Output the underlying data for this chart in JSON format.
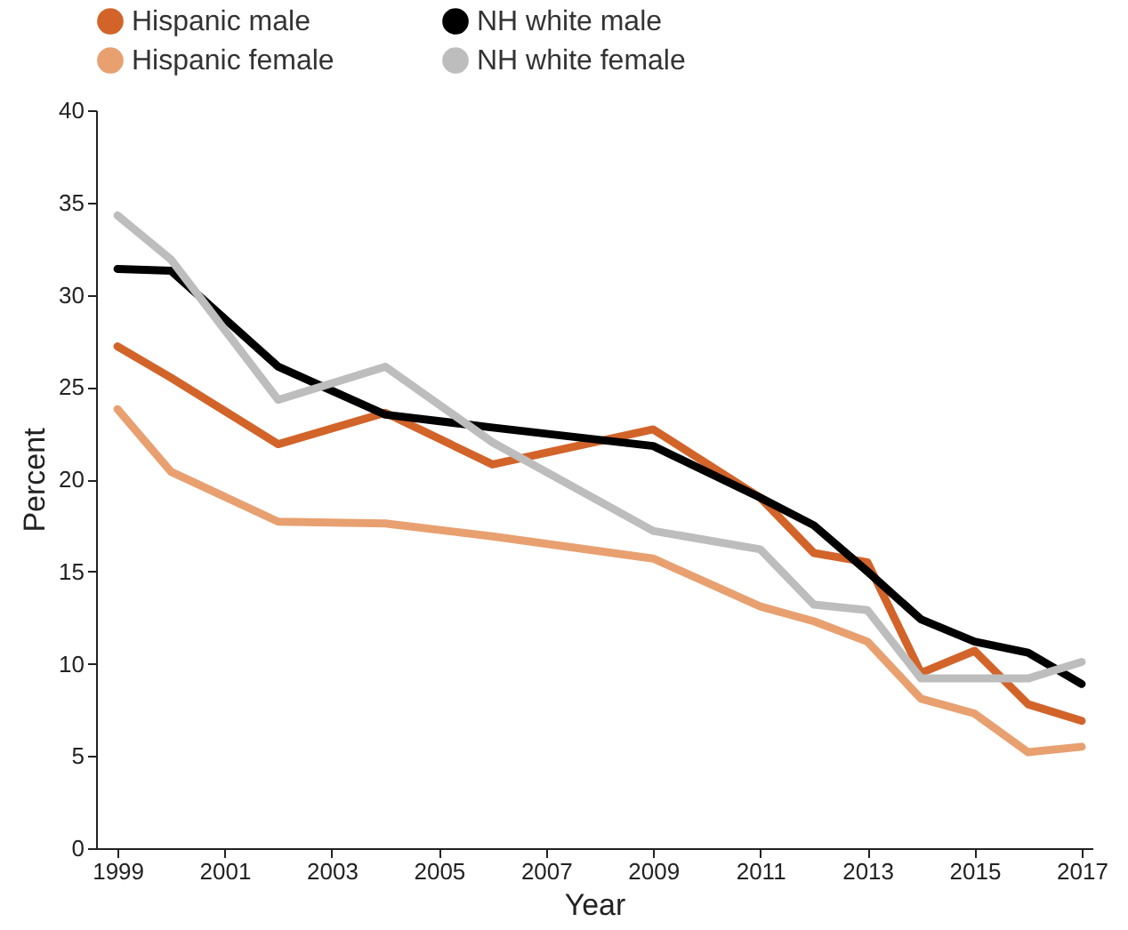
{
  "chart_data": {
    "type": "line",
    "xlabel": "Year",
    "ylabel": "Percent",
    "x": [
      1999,
      2000,
      2002,
      2004,
      2006,
      2009,
      2011,
      2012,
      2013,
      2014,
      2015,
      2016,
      2017
    ],
    "series": [
      {
        "name": "Hispanic male",
        "color": "#d2642a",
        "values": [
          27.2,
          25.5,
          21.9,
          23.6,
          20.8,
          22.7,
          19,
          16,
          15.5,
          9.5,
          10.7,
          7.8,
          6.9
        ]
      },
      {
        "name": "Hispanic female",
        "color": "#e8a070",
        "values": [
          23.8,
          20.4,
          17.7,
          17.6,
          16.9,
          15.7,
          13.1,
          12.3,
          11.2,
          8.1,
          7.3,
          5.2,
          5.5
        ]
      },
      {
        "name": "NH white male",
        "color": "#000000",
        "values": [
          31.4,
          31.3,
          26.1,
          23.5,
          22.8,
          21.8,
          19,
          17.5,
          15,
          12.4,
          11.2,
          10.6,
          8.9
        ]
      },
      {
        "name": "NH white female",
        "color": "#bdbdbd",
        "values": [
          34.3,
          31.9,
          24.3,
          26.1,
          22,
          17.2,
          16.2,
          13.2,
          12.9,
          9.2,
          9.2,
          9.2,
          10.1
        ]
      }
    ],
    "xlim": [
      1998.6,
      2017.2
    ],
    "xticks": [
      1999,
      2001,
      2003,
      2005,
      2007,
      2009,
      2011,
      2013,
      2015,
      2017
    ],
    "ylim": [
      0,
      40
    ],
    "yticks": [
      0,
      5,
      10,
      15,
      20,
      25,
      30,
      35,
      40
    ],
    "grid": false,
    "legend": "top",
    "marker": "none",
    "line_style": "solid"
  }
}
